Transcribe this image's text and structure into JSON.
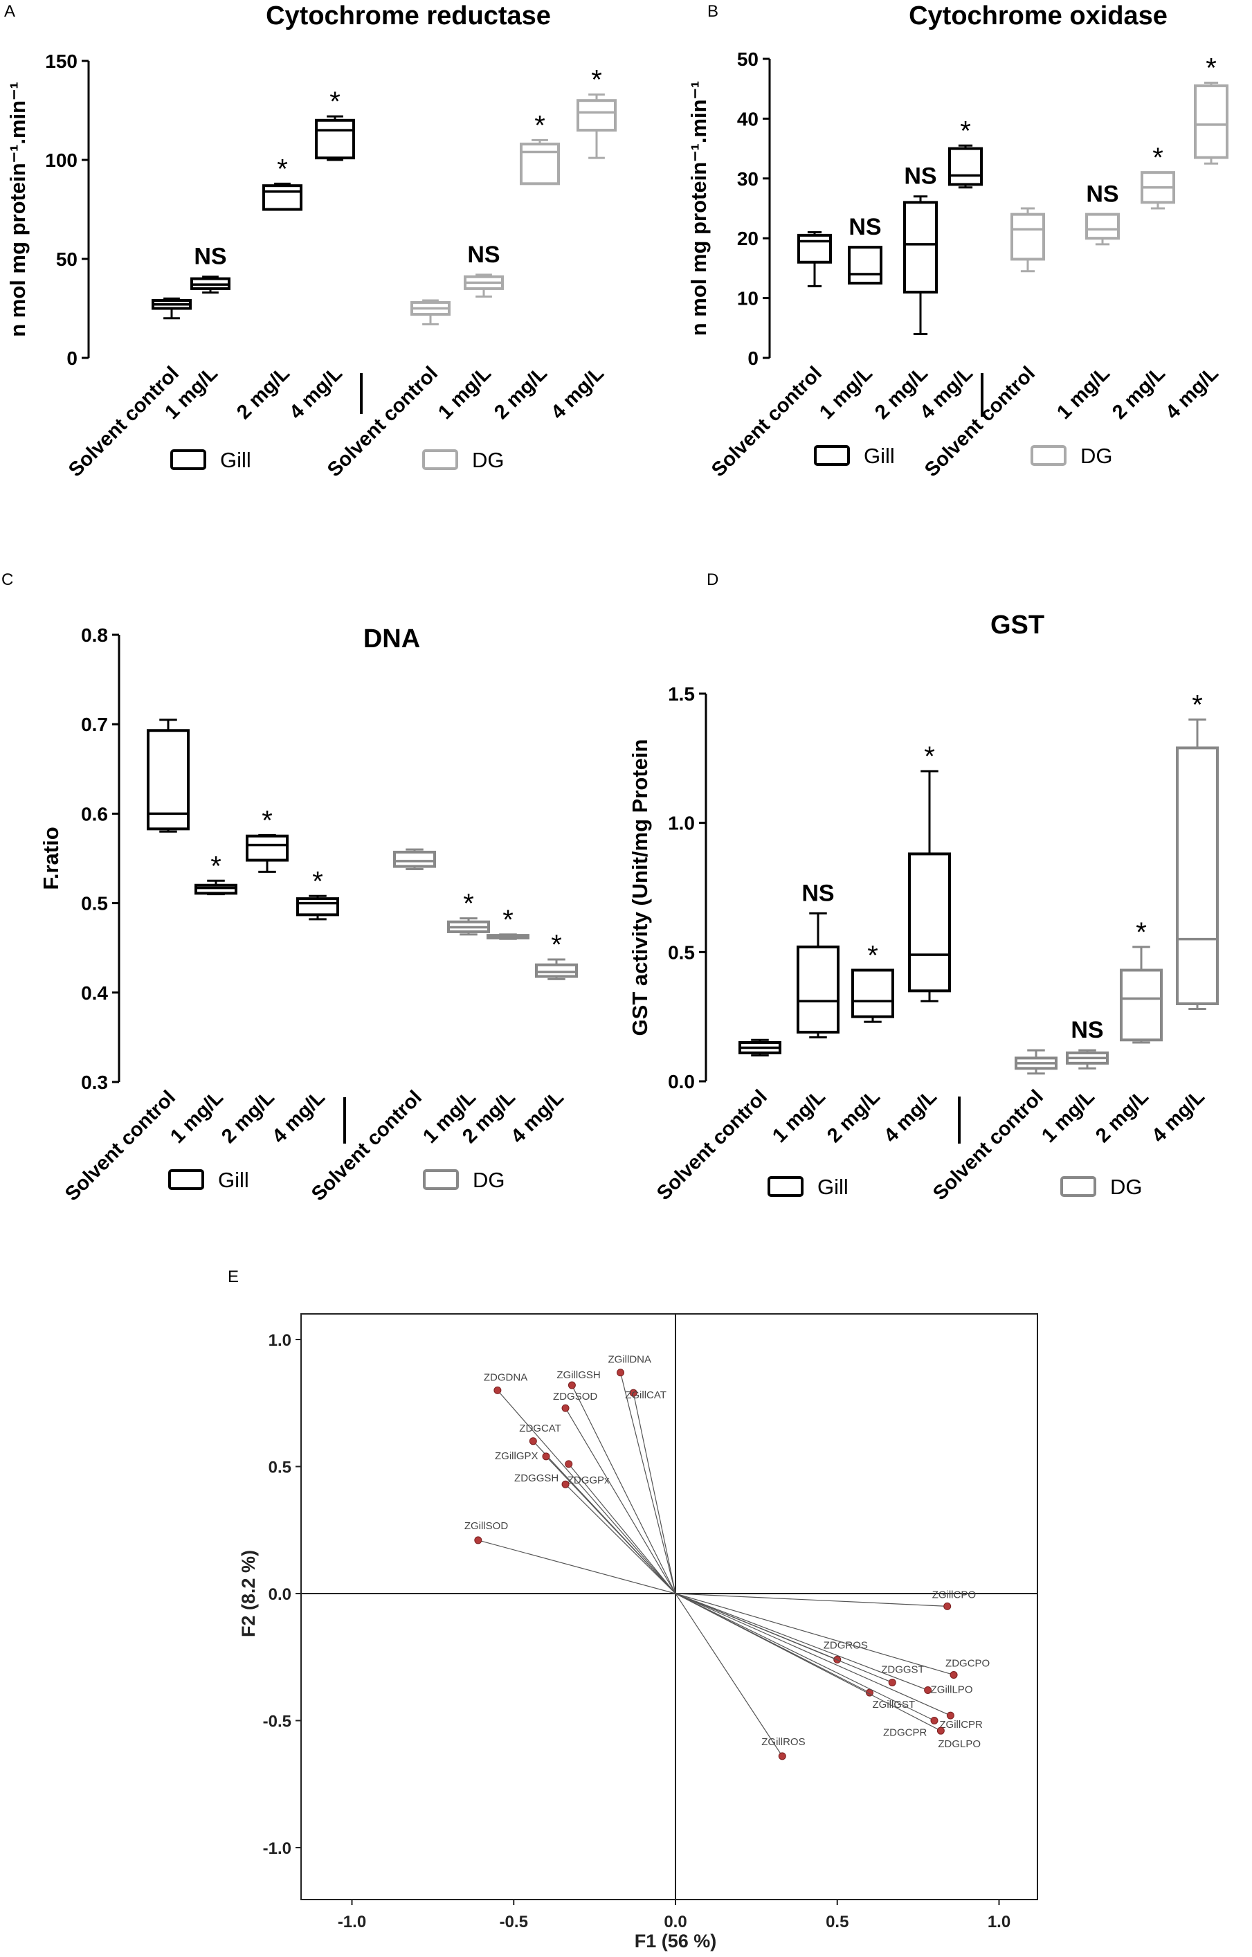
{
  "figure": {
    "panels": [
      "A",
      "B",
      "C",
      "D",
      "E"
    ]
  },
  "legend": {
    "gill": "Gill",
    "dg": "DG"
  },
  "colors": {
    "gill": "#000000",
    "dg_light": "#aaaaaa",
    "dg_mid": "#888888",
    "pca_point": "#b33a3a",
    "pca_line": "#555555"
  },
  "chart_data": [
    {
      "panel": "A",
      "type": "box",
      "title": "Cytochrome reductase",
      "ylabel": "n mol mg protein⁻¹.min⁻¹",
      "ylim": [
        0,
        150
      ],
      "yticks": [
        0,
        50,
        100,
        150
      ],
      "categories": [
        "Solvent control",
        "1 mg/L",
        "2 mg/L",
        "4 mg/L",
        "Solvent control",
        "1 mg/L",
        "2 mg/L",
        "4 mg/L"
      ],
      "groups": [
        "Gill",
        "Gill",
        "Gill",
        "Gill",
        "DG",
        "DG",
        "DG",
        "DG"
      ],
      "boxes": [
        {
          "min": 20,
          "q1": 25,
          "median": 27,
          "q3": 29,
          "max": 30
        },
        {
          "min": 33,
          "q1": 35,
          "median": 37,
          "q3": 40,
          "max": 41
        },
        {
          "min": 75,
          "q1": 75,
          "median": 84,
          "q3": 87,
          "max": 88
        },
        {
          "min": 100,
          "q1": 101,
          "median": 115,
          "q3": 120,
          "max": 122
        },
        {
          "min": 17,
          "q1": 22,
          "median": 25,
          "q3": 28,
          "max": 29
        },
        {
          "min": 31,
          "q1": 35,
          "median": 38,
          "q3": 41,
          "max": 42
        },
        {
          "min": 88,
          "q1": 88,
          "median": 104,
          "q3": 108,
          "max": 110
        },
        {
          "min": 101,
          "q1": 115,
          "median": 124,
          "q3": 130,
          "max": 133
        }
      ],
      "annotations": [
        "",
        "NS",
        "*",
        "*",
        "",
        "NS",
        "*",
        "*"
      ]
    },
    {
      "panel": "B",
      "type": "box",
      "title": "Cytochrome oxidase",
      "ylabel": "n mol mg protein⁻¹.min⁻¹",
      "ylim": [
        0,
        50
      ],
      "yticks": [
        0,
        10,
        20,
        30,
        40,
        50
      ],
      "categories": [
        "Solvent control",
        "1 mg/L",
        "2 mg/L",
        "4 mg/L",
        "Solvent control",
        "1 mg/L",
        "2 mg/L",
        "4 mg/L"
      ],
      "groups": [
        "Gill",
        "Gill",
        "Gill",
        "Gill",
        "DG",
        "DG",
        "DG",
        "DG"
      ],
      "boxes": [
        {
          "min": 12,
          "q1": 16,
          "median": 19.5,
          "q3": 20.5,
          "max": 21
        },
        {
          "min": 12.5,
          "q1": 12.5,
          "median": 14,
          "q3": 18.5,
          "max": 18.5
        },
        {
          "min": 4,
          "q1": 11,
          "median": 19,
          "q3": 26,
          "max": 27
        },
        {
          "min": 28.5,
          "q1": 29,
          "median": 30.5,
          "q3": 35,
          "max": 35.5
        },
        {
          "min": 14.5,
          "q1": 16.5,
          "median": 21.5,
          "q3": 24,
          "max": 25
        },
        {
          "min": 19,
          "q1": 20,
          "median": 21.5,
          "q3": 24,
          "max": 24
        },
        {
          "min": 25,
          "q1": 26,
          "median": 28.5,
          "q3": 31,
          "max": 31
        },
        {
          "min": 32.5,
          "q1": 33.5,
          "median": 39,
          "q3": 45.5,
          "max": 46
        }
      ],
      "annotations": [
        "",
        "NS",
        "NS",
        "*",
        "",
        "NS",
        "*",
        "*"
      ]
    },
    {
      "panel": "C",
      "type": "box",
      "title": "DNA",
      "ylabel": "F.ratio",
      "ylim": [
        0.3,
        0.8
      ],
      "yticks": [
        0.3,
        0.4,
        0.5,
        0.6,
        0.7,
        0.8
      ],
      "categories": [
        "Solvent control",
        "1 mg/L",
        "2 mg/L",
        "4 mg/L",
        "Solvent control",
        "1 mg/L",
        "2 mg/L",
        "4 mg/L"
      ],
      "groups": [
        "Gill",
        "Gill",
        "Gill",
        "Gill",
        "DG",
        "DG",
        "DG",
        "DG"
      ],
      "boxes": [
        {
          "min": 0.58,
          "q1": 0.583,
          "median": 0.6,
          "q3": 0.693,
          "max": 0.705
        },
        {
          "min": 0.51,
          "q1": 0.511,
          "median": 0.517,
          "q3": 0.52,
          "max": 0.525
        },
        {
          "min": 0.535,
          "q1": 0.548,
          "median": 0.565,
          "q3": 0.575,
          "max": 0.576
        },
        {
          "min": 0.482,
          "q1": 0.487,
          "median": 0.5,
          "q3": 0.505,
          "max": 0.508
        },
        {
          "min": 0.538,
          "q1": 0.541,
          "median": 0.547,
          "q3": 0.557,
          "max": 0.56
        },
        {
          "min": 0.465,
          "q1": 0.468,
          "median": 0.473,
          "q3": 0.479,
          "max": 0.483
        },
        {
          "min": 0.46,
          "q1": 0.461,
          "median": 0.462,
          "q3": 0.464,
          "max": 0.465
        },
        {
          "min": 0.415,
          "q1": 0.418,
          "median": 0.423,
          "q3": 0.431,
          "max": 0.437
        }
      ],
      "annotations": [
        "",
        "*",
        "*",
        "*",
        "",
        "*",
        "*",
        "*"
      ]
    },
    {
      "panel": "D",
      "type": "box",
      "title": "GST",
      "ylabel": "GST activity (Unit/mg Protein",
      "ylim": [
        0,
        1.5
      ],
      "yticks": [
        0.0,
        0.5,
        1.0,
        1.5
      ],
      "categories": [
        "Solvent control",
        "1 mg/L",
        "2 mg/L",
        "4 mg/L",
        "Solvent control",
        "1 mg/L",
        "2 mg/L",
        "4 mg/L"
      ],
      "groups": [
        "Gill",
        "Gill",
        "Gill",
        "Gill",
        "DG",
        "DG",
        "DG",
        "DG"
      ],
      "boxes": [
        {
          "min": 0.1,
          "q1": 0.11,
          "median": 0.13,
          "q3": 0.15,
          "max": 0.16
        },
        {
          "min": 0.17,
          "q1": 0.19,
          "median": 0.31,
          "q3": 0.52,
          "max": 0.65
        },
        {
          "min": 0.23,
          "q1": 0.25,
          "median": 0.31,
          "q3": 0.43,
          "max": 0.43
        },
        {
          "min": 0.31,
          "q1": 0.35,
          "median": 0.49,
          "q3": 0.88,
          "max": 1.2
        },
        {
          "min": 0.03,
          "q1": 0.05,
          "median": 0.07,
          "q3": 0.09,
          "max": 0.12
        },
        {
          "min": 0.05,
          "q1": 0.07,
          "median": 0.09,
          "q3": 0.11,
          "max": 0.12
        },
        {
          "min": 0.15,
          "q1": 0.16,
          "median": 0.32,
          "q3": 0.43,
          "max": 0.52
        },
        {
          "min": 0.28,
          "q1": 0.3,
          "median": 0.55,
          "q3": 1.29,
          "max": 1.4
        }
      ],
      "annotations": [
        "",
        "NS",
        "*",
        "*",
        "",
        "NS",
        "*",
        "*"
      ]
    },
    {
      "panel": "E",
      "type": "scatter",
      "subtype": "pca-biplot",
      "xlabel": "F1 (56 %)",
      "ylabel": "F2 (8.2 %)",
      "xlim": [
        -1.1,
        1.1
      ],
      "ylim": [
        -1.1,
        1.1
      ],
      "xticks": [
        "-1.0",
        "-0.5",
        "0.0",
        "0.5",
        "1.0"
      ],
      "yticks": [
        "-1.0",
        "-0.5",
        "0.0",
        "0.5",
        "1.0"
      ],
      "points": [
        {
          "label": "ZGillDNA",
          "x": -0.17,
          "y": 0.87
        },
        {
          "label": "ZGillGSH",
          "x": -0.32,
          "y": 0.82
        },
        {
          "label": "ZGillCAT",
          "x": -0.13,
          "y": 0.79
        },
        {
          "label": "ZDGDNA",
          "x": -0.55,
          "y": 0.8
        },
        {
          "label": "ZDGSOD",
          "x": -0.34,
          "y": 0.73
        },
        {
          "label": "ZDGCAT",
          "x": -0.44,
          "y": 0.6
        },
        {
          "label": "ZGillGPX",
          "x": -0.4,
          "y": 0.54
        },
        {
          "label": "ZDGGPx",
          "x": -0.33,
          "y": 0.51
        },
        {
          "label": "ZDGGSH",
          "x": -0.34,
          "y": 0.43
        },
        {
          "label": "ZGillSOD",
          "x": -0.61,
          "y": 0.21
        },
        {
          "label": "ZGillCPO",
          "x": 0.84,
          "y": -0.05
        },
        {
          "label": "ZDGROS",
          "x": 0.5,
          "y": -0.26
        },
        {
          "label": "ZDGCPO",
          "x": 0.86,
          "y": -0.32
        },
        {
          "label": "ZDGGST",
          "x": 0.67,
          "y": -0.35
        },
        {
          "label": "ZGillLPO",
          "x": 0.78,
          "y": -0.38
        },
        {
          "label": "ZGillGST",
          "x": 0.6,
          "y": -0.39
        },
        {
          "label": "ZGillCPR",
          "x": 0.85,
          "y": -0.48
        },
        {
          "label": "ZDGCPR",
          "x": 0.8,
          "y": -0.5
        },
        {
          "label": "ZDGLPO",
          "x": 0.82,
          "y": -0.54
        },
        {
          "label": "ZGillROS",
          "x": 0.33,
          "y": -0.64
        }
      ]
    }
  ]
}
